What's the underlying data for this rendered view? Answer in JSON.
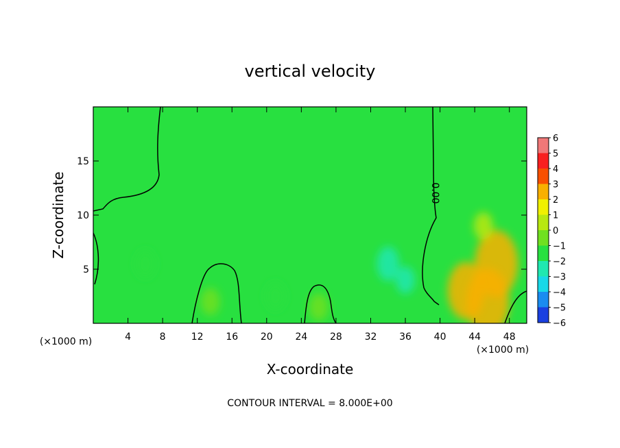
{
  "chart_data": {
    "type": "heatmap",
    "title": "vertical velocity",
    "xlabel": "X-coordinate",
    "ylabel": "Z-coordinate",
    "x_unit": "(×1000 m)",
    "x_unit_right": "(×1000 m)",
    "xlim": [
      0,
      50
    ],
    "ylim": [
      0,
      20
    ],
    "xticks": [
      4,
      8,
      12,
      16,
      20,
      24,
      28,
      32,
      36,
      40,
      44,
      48
    ],
    "yticks": [
      5,
      10,
      15
    ],
    "colorbar": {
      "levels": [
        -6,
        -5,
        -4,
        -3,
        -2,
        -1,
        0,
        1,
        2,
        3,
        4,
        5,
        6
      ],
      "colors": [
        "#7a1fa8",
        "#1010b8",
        "#1a40e0",
        "#1a8cf0",
        "#18d8e8",
        "#20e8b0",
        "#28e040",
        "#70e020",
        "#b8e810",
        "#f0f000",
        "#f8b000",
        "#f85000",
        "#f82020",
        "#f07878"
      ]
    },
    "contour_interval": "CONTOUR INTERVAL = 8.000E+00",
    "contour_label": "0.00",
    "features": [
      {
        "x": 13.5,
        "z": 2.0,
        "w": 0.5
      },
      {
        "x": 26.0,
        "z": 1.5,
        "w": 0.5
      },
      {
        "x": 43.0,
        "z": 3.0,
        "w": 3.0
      },
      {
        "x": 45.5,
        "z": 2.0,
        "w": 3.5
      },
      {
        "x": 46.5,
        "z": 5.5,
        "w": 3.5
      },
      {
        "x": 45.0,
        "z": 9.0,
        "w": 1.0
      },
      {
        "x": 34.0,
        "z": 5.5,
        "w": -1.8
      },
      {
        "x": 36.0,
        "z": 4.0,
        "w": -1.2
      },
      {
        "x": 6.0,
        "z": 5.5,
        "w": -1.0
      },
      {
        "x": 21.0,
        "z": 2.5,
        "w": -1.0
      }
    ]
  }
}
